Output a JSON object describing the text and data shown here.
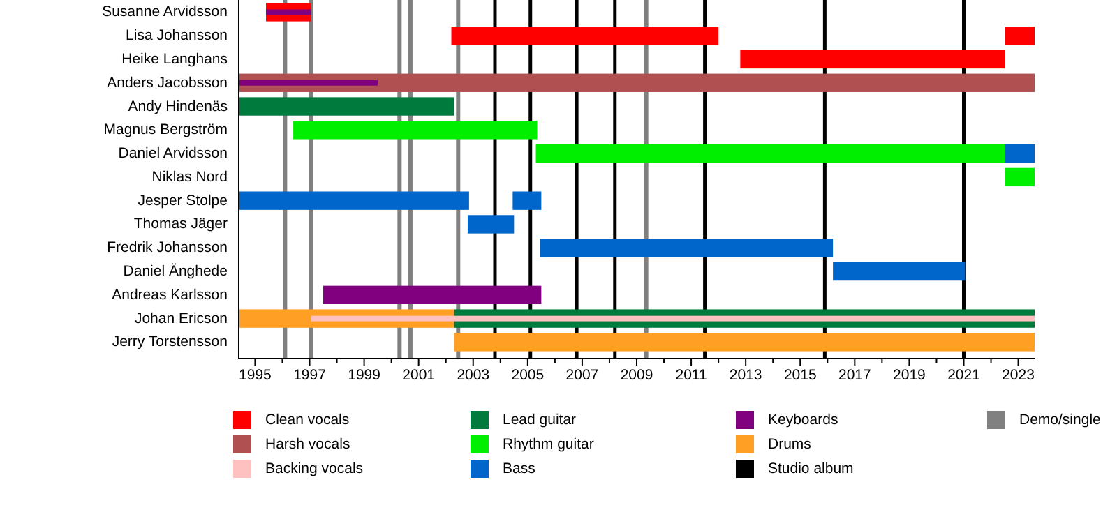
{
  "chart_data": {
    "type": "bar",
    "orientation": "horizontal",
    "legend": "bottom",
    "categories": [
      "Susanne Arvidsson",
      "Lisa Johansson",
      "Heike Langhans",
      "Anders Jacobsson",
      "Andy Hindenäs",
      "Magnus Bergström",
      "Daniel Arvidsson",
      "Niklas Nord",
      "Jesper Stolpe",
      "Thomas Jäger",
      "Fredrik Johansson",
      "Daniel Änghede",
      "Andreas Karlsson",
      "Johan Ericson",
      "Jerry Torstensson"
    ],
    "xlim": [
      1994.4,
      2023.6
    ],
    "xticks": [
      1995,
      {
        "value": 1996,
        "label": null
      },
      1997,
      {
        "value": 1998,
        "label": null
      },
      1999,
      {
        "value": 2000,
        "label": null
      },
      2001,
      {
        "value": 2002,
        "label": null
      },
      2003,
      {
        "value": 2004,
        "label": null
      },
      2005,
      {
        "value": 2006,
        "label": null
      },
      2007,
      {
        "value": 2008,
        "label": null
      },
      2009,
      {
        "value": 2010,
        "label": null
      },
      2011,
      {
        "value": 2012,
        "label": null
      },
      2013,
      {
        "value": 2014,
        "label": null
      },
      2015,
      {
        "value": 2016,
        "label": null
      },
      2017,
      {
        "value": 2018,
        "label": null
      },
      2019,
      {
        "value": 2020,
        "label": null
      },
      2021,
      {
        "value": 2022,
        "label": null
      },
      2023
    ],
    "series": [
      {
        "color": "#007a3d",
        "base": [
          null,
          null,
          null,
          null,
          null,
          null,
          null,
          null,
          null,
          null,
          null,
          null,
          null,
          2002.3,
          null
        ],
        "values": [
          null,
          null,
          null,
          null,
          null,
          null,
          null,
          null,
          null,
          null,
          null,
          null,
          null,
          21.3,
          null
        ]
      },
      {
        "color": "#ffa024",
        "base": [
          null,
          null,
          null,
          null,
          null,
          null,
          null,
          null,
          null,
          null,
          null,
          null,
          null,
          1994.4,
          null
        ],
        "values": [
          null,
          null,
          null,
          null,
          null,
          null,
          null,
          null,
          null,
          null,
          null,
          null,
          null,
          7.9,
          null
        ]
      },
      {
        "name": "Clean vocals",
        "color": "#ff0000",
        "base": [
          1995.4,
          2002.2,
          2012.8,
          null,
          null,
          null,
          null,
          null,
          null,
          null,
          null,
          null,
          null,
          null,
          null
        ],
        "values": [
          1.65,
          9.8,
          9.7,
          null,
          null,
          null,
          null,
          null,
          null,
          null,
          null,
          null,
          null,
          null,
          null
        ]
      },
      {
        "name": "Harsh vocals",
        "color": "#b05050",
        "base": [
          null,
          null,
          null,
          1994.4,
          null,
          null,
          null,
          null,
          null,
          null,
          null,
          null,
          null,
          null,
          null
        ],
        "values": [
          null,
          null,
          null,
          29.2,
          null,
          null,
          null,
          null,
          null,
          null,
          null,
          null,
          null,
          null,
          null
        ]
      },
      {
        "name": "Backing vocals",
        "color": "#ffc0c0",
        "base": [
          null,
          null,
          null,
          null,
          null,
          null,
          null,
          null,
          null,
          null,
          null,
          null,
          null,
          1997.05,
          null
        ],
        "values": [
          null,
          null,
          null,
          null,
          null,
          null,
          null,
          null,
          null,
          null,
          null,
          null,
          null,
          26.55,
          null
        ]
      },
      {
        "name": "Lead guitar",
        "color": "#007a3d",
        "base": [
          null,
          null,
          null,
          null,
          1994.4,
          null,
          null,
          null,
          null,
          null,
          null,
          null,
          null,
          null,
          null
        ],
        "values": [
          null,
          null,
          null,
          null,
          7.9,
          null,
          null,
          null,
          null,
          null,
          null,
          null,
          null,
          null,
          null
        ]
      },
      {
        "name": "Rhythm guitar",
        "color": "#00ee00",
        "base": [
          null,
          null,
          null,
          null,
          null,
          1996.4,
          2005.3,
          2022.5,
          null,
          null,
          null,
          null,
          null,
          null,
          null
        ],
        "values": [
          null,
          null,
          null,
          null,
          null,
          8.95,
          17.2,
          1.1,
          null,
          null,
          null,
          null,
          null,
          null,
          null
        ]
      },
      {
        "name": "Bass",
        "color": "#0066cc",
        "base": [
          null,
          null,
          null,
          null,
          null,
          null,
          2022.5,
          null,
          1994.4,
          2002.8,
          2005.45,
          2016.2,
          null,
          null,
          null
        ],
        "values": [
          null,
          null,
          null,
          null,
          null,
          null,
          1.1,
          null,
          8.45,
          1.7,
          10.75,
          4.85,
          null,
          null,
          null
        ]
      },
      {
        "name": "Keyboards",
        "color": "#800080",
        "base": [
          1995.4,
          null,
          null,
          1994.4,
          null,
          null,
          null,
          null,
          null,
          null,
          null,
          null,
          1997.5,
          null,
          null
        ],
        "values": [
          1.65,
          null,
          null,
          5.1,
          null,
          null,
          null,
          null,
          null,
          null,
          null,
          null,
          8.0,
          null,
          null
        ]
      },
      {
        "name": "Drums",
        "color": "#ffa024",
        "base": [
          null,
          null,
          null,
          null,
          null,
          null,
          null,
          null,
          null,
          null,
          null,
          null,
          null,
          null,
          2002.3
        ],
        "values": [
          null,
          null,
          null,
          null,
          null,
          null,
          null,
          null,
          null,
          null,
          null,
          null,
          null,
          null,
          21.3
        ]
      },
      {
        "color": "#ff0000",
        "base": [
          null,
          2022.5,
          null,
          null,
          null,
          null,
          null,
          null,
          null,
          null,
          null,
          null,
          null,
          null,
          null
        ],
        "values": [
          null,
          1.1,
          null,
          null,
          null,
          null,
          null,
          null,
          null,
          null,
          null,
          null,
          null,
          null,
          null
        ]
      },
      {
        "color": "#0066cc",
        "base": [
          null,
          null,
          null,
          null,
          null,
          null,
          null,
          null,
          2004.45,
          null,
          null,
          null,
          null,
          null,
          null
        ],
        "values": [
          null,
          null,
          null,
          null,
          null,
          null,
          null,
          null,
          1.05,
          null,
          null,
          null,
          null,
          null,
          null
        ]
      }
    ],
    "ref_lines": [
      {
        "axis": "x",
        "value": 2003.8,
        "label": "Studio album",
        "color": "#000000"
      },
      {
        "axis": "x",
        "value": 2005.1,
        "color": "#000000"
      },
      {
        "axis": "x",
        "value": 2006.8,
        "color": "#000000"
      },
      {
        "axis": "x",
        "value": 2008.2,
        "color": "#000000"
      },
      {
        "axis": "x",
        "value": 2011.5,
        "color": "#000000"
      },
      {
        "axis": "x",
        "value": 2015.9,
        "color": "#000000"
      },
      {
        "axis": "x",
        "value": 2021.0,
        "color": "#000000"
      },
      {
        "axis": "x",
        "value": 1996.1,
        "label": "Demo/single",
        "color": "#808080"
      },
      {
        "axis": "x",
        "value": 1997.05,
        "color": "#808080"
      },
      {
        "axis": "x",
        "value": 2000.3,
        "color": "#808080"
      },
      {
        "axis": "x",
        "value": 2000.7,
        "color": "#808080"
      },
      {
        "axis": "x",
        "value": 2002.45,
        "color": "#808080"
      },
      {
        "axis": "x",
        "value": 2009.35,
        "color": "#808080"
      }
    ]
  }
}
